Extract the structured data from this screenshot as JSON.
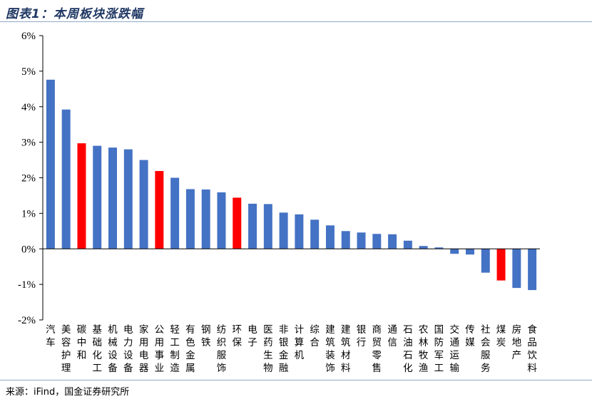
{
  "title": "图表1：本周板块涨跌幅",
  "source": "来源：iFind，国金证券研究所",
  "colors": {
    "normal": "#4472c4",
    "highlight": "#ff0000",
    "title": "#1f3763"
  },
  "chart_data": {
    "type": "bar",
    "title": "",
    "xlabel": "",
    "ylabel": "",
    "ylim": [
      -2,
      6
    ],
    "yticks": [
      "-2%",
      "-1%",
      "0%",
      "1%",
      "2%",
      "3%",
      "4%",
      "5%",
      "6%"
    ],
    "categories": [
      "汽车",
      "美容护理",
      "碳中和",
      "基础化工",
      "机械设备",
      "电力设备",
      "家用电器",
      "公用事业",
      "轻工制造",
      "有色金属",
      "钢铁",
      "纺织服饰",
      "环保",
      "电子",
      "医药生物",
      "非银金融",
      "计算机",
      "综合",
      "建筑装饰",
      "建筑材料",
      "银行",
      "商贸零售",
      "通信",
      "石油石化",
      "农林牧渔",
      "国防军工",
      "交通运输",
      "传媒",
      "社会服务",
      "煤炭",
      "房地产",
      "食品饮料"
    ],
    "values": [
      4.76,
      3.92,
      2.97,
      2.9,
      2.85,
      2.8,
      2.5,
      2.19,
      2.0,
      1.68,
      1.67,
      1.59,
      1.44,
      1.27,
      1.26,
      1.02,
      0.97,
      0.82,
      0.66,
      0.5,
      0.46,
      0.42,
      0.41,
      0.23,
      0.08,
      0.04,
      -0.14,
      -0.16,
      -0.67,
      -0.89,
      -1.1,
      -1.16
    ],
    "highlight": [
      false,
      false,
      true,
      false,
      false,
      false,
      false,
      true,
      false,
      false,
      false,
      false,
      true,
      false,
      false,
      false,
      false,
      false,
      false,
      false,
      false,
      false,
      false,
      false,
      false,
      false,
      false,
      false,
      false,
      true,
      false,
      false
    ],
    "grid": false,
    "legend": "none"
  }
}
